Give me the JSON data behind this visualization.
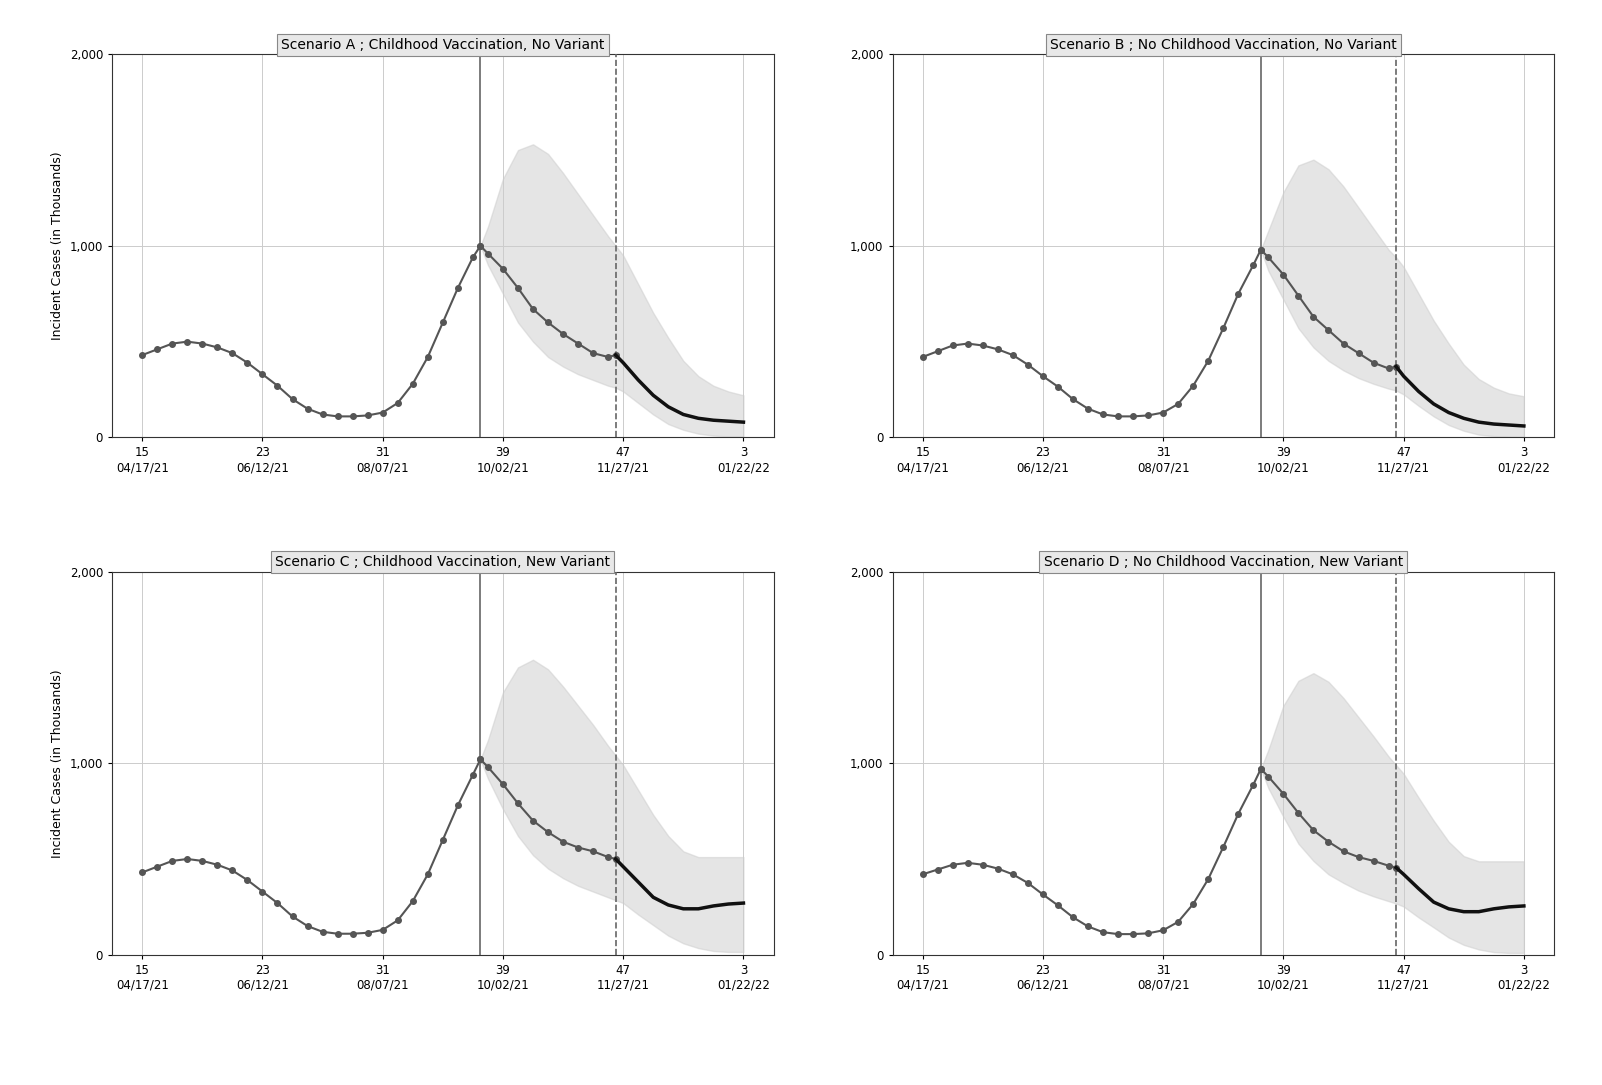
{
  "titles": [
    "Scenario A ; Childhood Vaccination, No Variant",
    "Scenario B ; No Childhood Vaccination, No Variant",
    "Scenario C ; Childhood Vaccination, New Variant",
    "Scenario D ; No Childhood Vaccination, New Variant"
  ],
  "xlabel": "",
  "ylabel": "Incident Cases (in Thousands)",
  "ylim": [
    0,
    2000
  ],
  "xtick_positions": [
    15,
    23,
    31,
    39,
    47,
    55
  ],
  "xtick_labels": [
    "15\n04/17/21",
    "23\n06/12/21",
    "31\n08/07/21",
    "39\n10/02/21",
    "47\n11/27/21",
    "3\n01/22/22"
  ],
  "vline_solid": 37.5,
  "vline_dashed": 46.5,
  "background_color": "#ffffff",
  "grid_color": "#cccccc",
  "historical_color": "#555555",
  "forecast_color": "#111111",
  "band_color": "#cccccc",
  "band_alpha": 0.5,
  "scenarios": {
    "A": {
      "hist_x": [
        15,
        16,
        17,
        18,
        19,
        20,
        21,
        22,
        23,
        24,
        25,
        26,
        27,
        28,
        29,
        30,
        31,
        32,
        33,
        34,
        35,
        36,
        37,
        37.5
      ],
      "hist_y": [
        430,
        460,
        490,
        500,
        490,
        470,
        440,
        390,
        330,
        270,
        200,
        150,
        120,
        110,
        110,
        115,
        130,
        180,
        280,
        420,
        600,
        780,
        940,
        1000
      ],
      "forecast_x": [
        37.5,
        38,
        39,
        40,
        41,
        42,
        43,
        44,
        45,
        46,
        46.5,
        47,
        48,
        49,
        50,
        51,
        52,
        53,
        54,
        55
      ],
      "forecast_y": [
        1000,
        960,
        880,
        780,
        670,
        600,
        540,
        490,
        440,
        420,
        430,
        390,
        300,
        220,
        160,
        120,
        100,
        90,
        85,
        80
      ],
      "band_x": [
        37.5,
        38,
        39,
        40,
        41,
        42,
        43,
        44,
        45,
        46,
        46.5,
        47,
        48,
        49,
        50,
        51,
        52,
        53,
        54,
        55
      ],
      "band_upper": [
        1000,
        1100,
        1350,
        1500,
        1530,
        1480,
        1380,
        1270,
        1160,
        1050,
        1000,
        950,
        800,
        650,
        520,
        400,
        320,
        270,
        240,
        220
      ],
      "band_lower": [
        1000,
        900,
        750,
        600,
        500,
        420,
        370,
        330,
        300,
        270,
        260,
        240,
        180,
        120,
        70,
        40,
        20,
        10,
        5,
        5
      ],
      "dotted_after_x": [
        37.5,
        38,
        39,
        40,
        41,
        42,
        43,
        44,
        45,
        46,
        46.5
      ],
      "dotted_after_y": [
        1000,
        960,
        880,
        780,
        670,
        600,
        540,
        490,
        440,
        420,
        430
      ]
    },
    "B": {
      "hist_x": [
        15,
        16,
        17,
        18,
        19,
        20,
        21,
        22,
        23,
        24,
        25,
        26,
        27,
        28,
        29,
        30,
        31,
        32,
        33,
        34,
        35,
        36,
        37,
        37.5
      ],
      "hist_y": [
        420,
        450,
        480,
        490,
        480,
        460,
        430,
        380,
        320,
        265,
        200,
        150,
        120,
        110,
        110,
        115,
        130,
        175,
        270,
        400,
        570,
        750,
        900,
        980
      ],
      "forecast_x": [
        37.5,
        38,
        39,
        40,
        41,
        42,
        43,
        44,
        45,
        46,
        46.5,
        47,
        48,
        49,
        50,
        51,
        52,
        53,
        54,
        55
      ],
      "forecast_y": [
        980,
        940,
        850,
        740,
        630,
        560,
        490,
        440,
        390,
        360,
        370,
        320,
        240,
        175,
        130,
        100,
        80,
        70,
        65,
        60
      ],
      "band_x": [
        37.5,
        38,
        39,
        40,
        41,
        42,
        43,
        44,
        45,
        46,
        46.5,
        47,
        48,
        49,
        50,
        51,
        52,
        53,
        54,
        55
      ],
      "band_upper": [
        980,
        1080,
        1280,
        1420,
        1450,
        1400,
        1310,
        1200,
        1090,
        980,
        940,
        890,
        750,
        610,
        490,
        380,
        305,
        260,
        230,
        215
      ],
      "band_lower": [
        980,
        870,
        720,
        570,
        470,
        400,
        350,
        310,
        280,
        255,
        245,
        225,
        165,
        110,
        65,
        35,
        15,
        7,
        4,
        3
      ],
      "dotted_after_x": [
        37.5,
        38,
        39,
        40,
        41,
        42,
        43,
        44,
        45,
        46,
        46.5
      ],
      "dotted_after_y": [
        980,
        940,
        850,
        740,
        630,
        560,
        490,
        440,
        390,
        360,
        370
      ]
    },
    "C": {
      "hist_x": [
        15,
        16,
        17,
        18,
        19,
        20,
        21,
        22,
        23,
        24,
        25,
        26,
        27,
        28,
        29,
        30,
        31,
        32,
        33,
        34,
        35,
        36,
        37,
        37.5
      ],
      "hist_y": [
        430,
        460,
        490,
        500,
        490,
        470,
        440,
        390,
        330,
        270,
        200,
        150,
        120,
        110,
        110,
        115,
        130,
        180,
        280,
        420,
        600,
        780,
        940,
        1020
      ],
      "forecast_x": [
        37.5,
        38,
        39,
        40,
        41,
        42,
        43,
        44,
        45,
        46,
        46.5,
        47,
        48,
        49,
        50,
        51,
        52,
        53,
        54,
        55
      ],
      "forecast_y": [
        1020,
        980,
        890,
        790,
        700,
        640,
        590,
        560,
        540,
        510,
        500,
        460,
        380,
        300,
        260,
        240,
        240,
        255,
        265,
        270
      ],
      "band_x": [
        37.5,
        38,
        39,
        40,
        41,
        42,
        43,
        44,
        45,
        46,
        46.5,
        47,
        48,
        49,
        50,
        51,
        52,
        53,
        54,
        55
      ],
      "band_upper": [
        1020,
        1120,
        1370,
        1500,
        1540,
        1490,
        1400,
        1300,
        1200,
        1090,
        1040,
        990,
        860,
        730,
        620,
        540,
        510,
        510,
        510,
        510
      ],
      "band_lower": [
        1020,
        920,
        760,
        620,
        520,
        450,
        400,
        360,
        330,
        300,
        285,
        270,
        210,
        155,
        100,
        60,
        35,
        20,
        15,
        15
      ],
      "dotted_after_x": [
        37.5,
        38,
        39,
        40,
        41,
        42,
        43,
        44,
        45,
        46,
        46.5
      ],
      "dotted_after_y": [
        1020,
        980,
        890,
        790,
        700,
        640,
        590,
        560,
        540,
        510,
        500
      ]
    },
    "D": {
      "hist_x": [
        15,
        16,
        17,
        18,
        19,
        20,
        21,
        22,
        23,
        24,
        25,
        26,
        27,
        28,
        29,
        30,
        31,
        32,
        33,
        34,
        35,
        36,
        37,
        37.5
      ],
      "hist_y": [
        420,
        445,
        470,
        480,
        470,
        450,
        420,
        375,
        315,
        258,
        196,
        148,
        118,
        108,
        108,
        112,
        128,
        172,
        265,
        395,
        562,
        736,
        888,
        970
      ],
      "forecast_x": [
        37.5,
        38,
        39,
        40,
        41,
        42,
        43,
        44,
        45,
        46,
        46.5,
        47,
        48,
        49,
        50,
        51,
        52,
        53,
        54,
        55
      ],
      "forecast_y": [
        970,
        930,
        840,
        740,
        650,
        590,
        540,
        510,
        490,
        465,
        455,
        420,
        345,
        275,
        240,
        225,
        225,
        240,
        250,
        255
      ],
      "band_x": [
        37.5,
        38,
        39,
        40,
        41,
        42,
        43,
        44,
        45,
        46,
        46.5,
        47,
        48,
        49,
        50,
        51,
        52,
        53,
        54,
        55
      ],
      "band_upper": [
        970,
        1070,
        1300,
        1430,
        1470,
        1425,
        1340,
        1240,
        1140,
        1035,
        990,
        945,
        820,
        700,
        590,
        515,
        488,
        488,
        488,
        488
      ],
      "band_lower": [
        970,
        870,
        720,
        580,
        490,
        420,
        375,
        335,
        305,
        280,
        268,
        252,
        195,
        143,
        90,
        52,
        28,
        14,
        10,
        10
      ],
      "dotted_after_x": [
        37.5,
        38,
        39,
        40,
        41,
        42,
        43,
        44,
        45,
        46,
        46.5
      ],
      "dotted_after_y": [
        970,
        930,
        840,
        740,
        650,
        590,
        540,
        510,
        490,
        465,
        455
      ]
    }
  }
}
